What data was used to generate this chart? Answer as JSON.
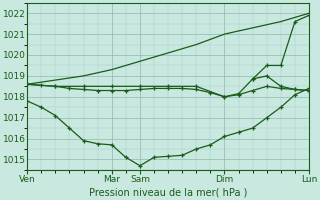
{
  "bg_color": "#c8e8e0",
  "grid_color": "#b8d8d0",
  "line_color": "#1a5c1a",
  "xlabel": "Pression niveau de la mer( hPa )",
  "ylim": [
    1014.5,
    1022.5
  ],
  "yticks": [
    1015,
    1016,
    1017,
    1018,
    1019,
    1020,
    1021,
    1022
  ],
  "xtick_labels": [
    "Ven",
    "Mar",
    "Sam",
    "Dim",
    "Lun"
  ],
  "xtick_positions": [
    0,
    6,
    8,
    14,
    20
  ],
  "total_x": 20,
  "line1_low": {
    "x": [
      0,
      1,
      2,
      3,
      4,
      5,
      6,
      7,
      8,
      9,
      10,
      11,
      12,
      13,
      14,
      15,
      16,
      17,
      18,
      19,
      20
    ],
    "y": [
      1017.8,
      1017.5,
      1017.1,
      1016.5,
      1015.9,
      1015.75,
      1015.7,
      1015.1,
      1014.7,
      1015.1,
      1015.15,
      1015.2,
      1015.5,
      1015.7,
      1016.1,
      1016.3,
      1016.5,
      1017.0,
      1017.5,
      1018.1,
      1018.4
    ]
  },
  "line2_flat": {
    "x": [
      0,
      1,
      2,
      3,
      4,
      5,
      6,
      7,
      8,
      9,
      10,
      11,
      12,
      13,
      14,
      15,
      16,
      17,
      18,
      19,
      20
    ],
    "y": [
      1018.6,
      1018.55,
      1018.5,
      1018.4,
      1018.35,
      1018.3,
      1018.3,
      1018.3,
      1018.35,
      1018.4,
      1018.4,
      1018.4,
      1018.35,
      1018.2,
      1018.0,
      1018.1,
      1018.3,
      1018.5,
      1018.4,
      1018.35,
      1018.3
    ]
  },
  "line3_rise": {
    "x": [
      0,
      2,
      4,
      6,
      8,
      10,
      12,
      14,
      16,
      18,
      19,
      20
    ],
    "y": [
      1018.6,
      1018.8,
      1019.0,
      1019.3,
      1019.7,
      1020.1,
      1020.5,
      1021.0,
      1021.3,
      1021.6,
      1021.8,
      1022.0
    ]
  },
  "line4_bump": {
    "x": [
      0,
      2,
      4,
      6,
      8,
      10,
      12,
      14,
      15,
      16,
      17,
      18,
      19,
      20
    ],
    "y": [
      1018.6,
      1018.5,
      1018.5,
      1018.5,
      1018.5,
      1018.5,
      1018.5,
      1018.0,
      1018.15,
      1018.85,
      1019.0,
      1018.5,
      1018.35,
      1018.3
    ]
  },
  "line5_topright": {
    "x": [
      16,
      17,
      18,
      19,
      20
    ],
    "y": [
      1018.85,
      1019.5,
      1019.5,
      1021.6,
      1021.9
    ]
  }
}
